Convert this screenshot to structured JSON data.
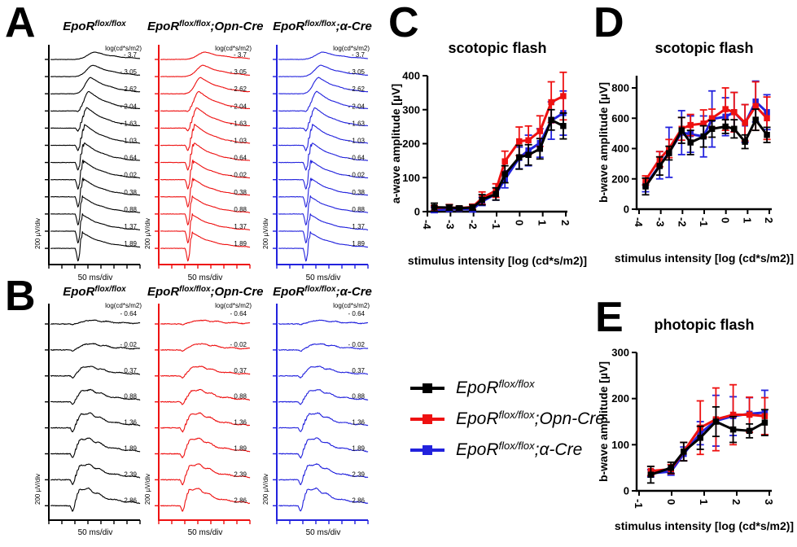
{
  "panel_a": {
    "label": "A",
    "unit_header": "log(cd*s/m2)",
    "y_scale": "200 µV/div",
    "x_scale": "50 ms/div",
    "intensities": [
      "- 3.7",
      "- 3.05",
      "- 2.62",
      "- 2.04",
      "- 1.63",
      "- 1.03",
      "- 0.64",
      "- 0.02",
      "0.38",
      "0.88",
      "1.37",
      "1.89"
    ],
    "columns": [
      {
        "title": {
          "base": "EpoR",
          "sup": "flox/flox",
          "suffix": ""
        },
        "color": "#000000"
      },
      {
        "title": {
          "base": "EpoR",
          "sup": "flox/flox",
          "suffix": ";Opn-Cre"
        },
        "color": "#ee1111"
      },
      {
        "title": {
          "base": "EpoR",
          "sup": "flox/flox",
          "suffix": ";α-Cre"
        },
        "color": "#2222dd"
      }
    ],
    "trace_shape": {
      "a": [
        0,
        0,
        0,
        2,
        5,
        8,
        11,
        13,
        14,
        15,
        16,
        17
      ],
      "b": [
        9,
        14,
        20,
        24,
        25,
        25,
        24,
        23,
        22,
        21,
        20,
        19
      ],
      "pk": [
        0.5,
        0.48,
        0.45,
        0.43,
        0.41,
        0.39,
        0.38,
        0.37,
        0.37,
        0.36,
        0.36,
        0.36
      ],
      "osc": [
        0,
        0,
        0,
        0.8,
        2,
        3,
        3.5,
        3.5,
        3.2,
        3,
        3,
        3
      ]
    }
  },
  "panel_b": {
    "label": "B",
    "unit_header": "log(cd*s/m2)",
    "y_scale": "200 µV/div",
    "x_scale": "50 ms/div",
    "intensities": [
      "- 0.64",
      "- 0.02",
      "0.37",
      "0.88",
      "1.36",
      "1.89",
      "2.39",
      "2.86"
    ],
    "columns": [
      {
        "title": {
          "base": "EpoR",
          "sup": "flox/flox",
          "suffix": ""
        },
        "color": "#000000"
      },
      {
        "title": {
          "base": "EpoR",
          "sup": "flox/flox",
          "suffix": ";Opn-Cre"
        },
        "color": "#ee1111"
      },
      {
        "title": {
          "base": "EpoR",
          "sup": "flox/flox",
          "suffix": ";α-Cre"
        },
        "color": "#2222dd"
      }
    ],
    "trace_shape": {
      "a": [
        1,
        2,
        3,
        4,
        6,
        6,
        7,
        8
      ],
      "b": [
        4,
        7,
        11,
        14,
        17,
        18,
        18,
        20
      ],
      "pk": [
        0.42,
        0.4,
        0.37,
        0.36,
        0.35,
        0.34,
        0.34,
        0.33
      ],
      "osc": [
        0,
        0,
        0.5,
        1,
        1.5,
        1.5,
        1.5,
        1.5
      ]
    }
  },
  "chart_data": [
    {
      "id": "C",
      "panel_label": "C",
      "type": "line",
      "title": "scotopic flash",
      "xlabel": "stimulus intensity [log (cd*s/m2)]",
      "ylabel": "a-wave amplitude [µV]",
      "xlim": [
        -4,
        2.05
      ],
      "ylim": [
        0,
        400
      ],
      "xticks": [
        -4,
        -3,
        -2,
        -1,
        0,
        1,
        2
      ],
      "yticks": [
        0,
        100,
        200,
        300,
        400
      ],
      "x": [
        -3.7,
        -3.05,
        -2.62,
        -2.04,
        -1.63,
        -1.03,
        -0.64,
        -0.02,
        0.38,
        0.88,
        1.37,
        1.89
      ],
      "series": [
        {
          "name": "EpoR flox/flox",
          "color": "#000000",
          "values": [
            13,
            12,
            10,
            12,
            35,
            52,
            110,
            160,
            167,
            185,
            270,
            252
          ],
          "errors": [
            12,
            8,
            6,
            8,
            15,
            18,
            25,
            35,
            30,
            30,
            30,
            38
          ]
        },
        {
          "name": "EpoR flox/flox;Opn-Cre",
          "color": "#ee1111",
          "values": [
            10,
            13,
            10,
            14,
            40,
            62,
            148,
            207,
            210,
            237,
            322,
            340
          ],
          "errors": [
            8,
            8,
            6,
            8,
            18,
            20,
            30,
            42,
            42,
            45,
            60,
            70
          ]
        },
        {
          "name": "EpoR flox/flox;α-Cre",
          "color": "#2222dd",
          "values": [
            5,
            7,
            8,
            7,
            30,
            52,
            95,
            158,
            180,
            202,
            268,
            290
          ],
          "errors": [
            8,
            6,
            5,
            8,
            12,
            18,
            25,
            32,
            45,
            42,
            55,
            65
          ]
        }
      ],
      "legend_position": "none",
      "grid": false
    },
    {
      "id": "D",
      "panel_label": "D",
      "type": "line",
      "title": "scotopic flash",
      "xlabel": "stimulus intensity [log (cd*s/m2)]",
      "ylabel": "b-wave amplitude [µV]",
      "xlim": [
        -4,
        2.05
      ],
      "ylim": [
        0,
        880
      ],
      "xticks": [
        -4,
        -3,
        -2,
        -1,
        0,
        1,
        2
      ],
      "yticks": [
        0,
        200,
        400,
        600,
        800
      ],
      "x": [
        -3.7,
        -3.05,
        -2.62,
        -2.04,
        -1.63,
        -1.03,
        -0.64,
        -0.02,
        0.38,
        0.88,
        1.37,
        1.89
      ],
      "series": [
        {
          "name": "EpoR flox/flox",
          "color": "#000000",
          "values": [
            150,
            285,
            370,
            520,
            440,
            480,
            530,
            545,
            530,
            445,
            590,
            490
          ],
          "errors": [
            55,
            60,
            45,
            85,
            80,
            70,
            55,
            45,
            60,
            45,
            70,
            50
          ]
        },
        {
          "name": "EpoR flox/flox;Opn-Cre",
          "color": "#ee1111",
          "values": [
            190,
            330,
            400,
            530,
            555,
            565,
            600,
            660,
            640,
            570,
            680,
            600
          ],
          "errors": [
            30,
            50,
            60,
            75,
            70,
            90,
            60,
            140,
            130,
            120,
            160,
            140
          ]
        },
        {
          "name": "EpoR flox/flox;α-Cre",
          "color": "#2222dd",
          "values": [
            160,
            290,
            375,
            505,
            495,
            480,
            595,
            610,
            640,
            565,
            710,
            640
          ],
          "errors": [
            45,
            90,
            165,
            145,
            120,
            135,
            185,
            125,
            130,
            125,
            135,
            115
          ]
        }
      ],
      "legend_position": "none",
      "grid": false
    },
    {
      "id": "E",
      "panel_label": "E",
      "type": "line",
      "title": "photopic flash",
      "xlabel": "stimulus intensity [log (cd*s/m2)]",
      "ylabel": "b-wave amplitude [µV]",
      "xlim": [
        -1,
        3.05
      ],
      "ylim": [
        0,
        300
      ],
      "xticks": [
        -1,
        0,
        1,
        2,
        3
      ],
      "yticks": [
        0,
        100,
        200,
        300
      ],
      "x": [
        -0.64,
        -0.02,
        0.37,
        0.88,
        1.36,
        1.89,
        2.39,
        2.86
      ],
      "series": [
        {
          "name": "EpoR flox/flox",
          "color": "#000000",
          "values": [
            35,
            50,
            85,
            115,
            150,
            133,
            130,
            148
          ],
          "errors": [
            18,
            12,
            20,
            25,
            32,
            28,
            15,
            28
          ]
        },
        {
          "name": "EpoR flox/flox;Opn-Cre",
          "color": "#ee1111",
          "values": [
            43,
            47,
            85,
            137,
            155,
            165,
            165,
            162
          ],
          "errors": [
            10,
            10,
            20,
            58,
            68,
            65,
            38,
            40
          ]
        },
        {
          "name": "EpoR flox/flox;α-Cre",
          "color": "#2222dd",
          "values": [
            38,
            42,
            80,
            125,
            152,
            162,
            167,
            170
          ],
          "errors": [
            8,
            8,
            15,
            25,
            55,
            42,
            35,
            48
          ]
        }
      ],
      "legend_position": "none",
      "grid": false
    }
  ],
  "legend": {
    "entries": [
      {
        "base": "EpoR",
        "sup": "flox/flox",
        "suffix": "",
        "color": "#000000"
      },
      {
        "base": "EpoR",
        "sup": "flox/flox",
        "suffix": ";Opn-Cre",
        "color": "#ee1111"
      },
      {
        "base": "EpoR",
        "sup": "flox/flox",
        "suffix": ";α-Cre",
        "color": "#2222dd"
      }
    ]
  }
}
